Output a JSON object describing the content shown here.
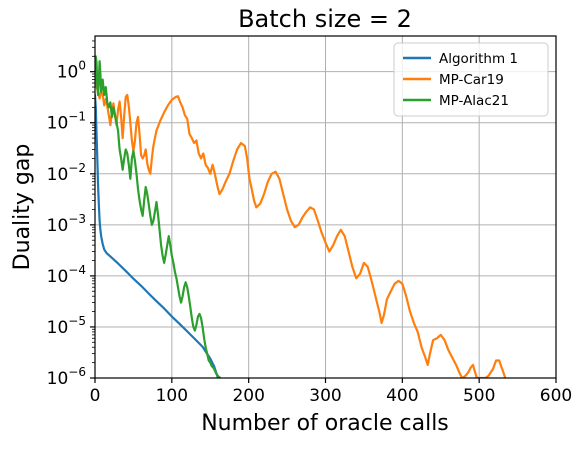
{
  "chart_data": {
    "type": "line",
    "title": "Batch size = 2",
    "xlabel": "Number of oracle calls",
    "ylabel": "Duality gap",
    "xlim": [
      0,
      600
    ],
    "ylim": [
      1e-06,
      5
    ],
    "yscale": "log",
    "grid": true,
    "legend_position": "top-right",
    "x_ticks": [
      {
        "value": 0,
        "label": "0"
      },
      {
        "value": 100,
        "label": "100"
      },
      {
        "value": 200,
        "label": "200"
      },
      {
        "value": 300,
        "label": "300"
      },
      {
        "value": 400,
        "label": "400"
      },
      {
        "value": 500,
        "label": "500"
      },
      {
        "value": 600,
        "label": "600"
      }
    ],
    "y_ticks": [
      {
        "value": 1.0,
        "base": "10",
        "exp": "0"
      },
      {
        "value": 0.1,
        "base": "10",
        "exp": "−1"
      },
      {
        "value": 0.01,
        "base": "10",
        "exp": "−2"
      },
      {
        "value": 0.001,
        "base": "10",
        "exp": "−3"
      },
      {
        "value": 0.0001,
        "base": "10",
        "exp": "−4"
      },
      {
        "value": 1e-05,
        "base": "10",
        "exp": "−5"
      },
      {
        "value": 1e-06,
        "base": "10",
        "exp": "−6"
      }
    ],
    "series": [
      {
        "name": "Algorithm 1",
        "color": "#1f77b4",
        "points": [
          [
            0,
            0.35
          ],
          [
            1,
            0.2
          ],
          [
            2,
            0.06
          ],
          [
            3,
            0.02
          ],
          [
            4,
            0.006
          ],
          [
            5,
            0.0025
          ],
          [
            6,
            0.0012
          ],
          [
            7,
            0.0008
          ],
          [
            8,
            0.0006
          ],
          [
            10,
            0.00042
          ],
          [
            12,
            0.00033
          ],
          [
            15,
            0.00028
          ],
          [
            20,
            0.00024
          ],
          [
            30,
            0.000175
          ],
          [
            40,
            0.000125
          ],
          [
            50,
            8.8e-05
          ],
          [
            60,
            6.4e-05
          ],
          [
            70,
            4.5e-05
          ],
          [
            80,
            3.2e-05
          ],
          [
            90,
            2.3e-05
          ],
          [
            100,
            1.6e-05
          ],
          [
            110,
            1.15e-05
          ],
          [
            120,
            8.2e-06
          ],
          [
            130,
            5.8e-06
          ],
          [
            140,
            4.1e-06
          ],
          [
            150,
            2.4e-06
          ],
          [
            155,
            1.7e-06
          ],
          [
            160,
            1e-06
          ]
        ]
      },
      {
        "name": "MP-Car19",
        "color": "#ff7f0e",
        "points": [
          [
            0,
            0.9
          ],
          [
            2,
            0.5
          ],
          [
            4,
            0.42
          ],
          [
            6,
            0.3
          ],
          [
            8,
            0.4
          ],
          [
            10,
            0.36
          ],
          [
            12,
            0.22
          ],
          [
            14,
            0.29
          ],
          [
            16,
            0.21
          ],
          [
            18,
            0.14
          ],
          [
            20,
            0.09
          ],
          [
            22,
            0.16
          ],
          [
            24,
            0.24
          ],
          [
            26,
            0.14
          ],
          [
            28,
            0.09
          ],
          [
            30,
            0.18
          ],
          [
            32,
            0.26
          ],
          [
            34,
            0.13
          ],
          [
            36,
            0.05
          ],
          [
            38,
            0.14
          ],
          [
            40,
            0.32
          ],
          [
            42,
            0.35
          ],
          [
            44,
            0.21
          ],
          [
            46,
            0.1
          ],
          [
            48,
            0.045
          ],
          [
            50,
            0.028
          ],
          [
            52,
            0.045
          ],
          [
            54,
            0.1
          ],
          [
            56,
            0.13
          ],
          [
            58,
            0.06
          ],
          [
            60,
            0.023
          ],
          [
            62,
            0.02
          ],
          [
            64,
            0.023
          ],
          [
            66,
            0.03
          ],
          [
            68,
            0.016
          ],
          [
            70,
            0.012
          ],
          [
            72,
            0.01
          ],
          [
            74,
            0.02
          ],
          [
            76,
            0.035
          ],
          [
            78,
            0.05
          ],
          [
            80,
            0.07
          ],
          [
            85,
            0.11
          ],
          [
            90,
            0.16
          ],
          [
            95,
            0.22
          ],
          [
            100,
            0.28
          ],
          [
            105,
            0.32
          ],
          [
            108,
            0.33
          ],
          [
            111,
            0.25
          ],
          [
            114,
            0.2
          ],
          [
            117,
            0.14
          ],
          [
            120,
            0.12
          ],
          [
            123,
            0.06
          ],
          [
            126,
            0.05
          ],
          [
            129,
            0.04
          ],
          [
            132,
            0.045
          ],
          [
            135,
            0.025
          ],
          [
            138,
            0.02
          ],
          [
            141,
            0.025
          ],
          [
            144,
            0.015
          ],
          [
            147,
            0.013
          ],
          [
            150,
            0.01
          ],
          [
            153,
            0.015
          ],
          [
            156,
            0.01
          ],
          [
            159,
            0.006
          ],
          [
            162,
            0.004
          ],
          [
            166,
            0.005
          ],
          [
            170,
            0.007
          ],
          [
            175,
            0.01
          ],
          [
            180,
            0.018
          ],
          [
            185,
            0.03
          ],
          [
            190,
            0.04
          ],
          [
            195,
            0.035
          ],
          [
            198,
            0.02
          ],
          [
            201,
            0.008
          ],
          [
            204,
            0.005
          ],
          [
            207,
            0.003
          ],
          [
            210,
            0.0022
          ],
          [
            215,
            0.0026
          ],
          [
            220,
            0.004
          ],
          [
            225,
            0.007
          ],
          [
            230,
            0.01
          ],
          [
            235,
            0.011
          ],
          [
            240,
            0.008
          ],
          [
            245,
            0.004
          ],
          [
            250,
            0.002
          ],
          [
            255,
            0.0012
          ],
          [
            260,
            0.0009
          ],
          [
            265,
            0.001
          ],
          [
            270,
            0.0014
          ],
          [
            275,
            0.0018
          ],
          [
            280,
            0.0022
          ],
          [
            285,
            0.002
          ],
          [
            290,
            0.0012
          ],
          [
            295,
            0.0007
          ],
          [
            300,
            0.00045
          ],
          [
            305,
            0.0003
          ],
          [
            310,
            0.0004
          ],
          [
            315,
            0.0006
          ],
          [
            320,
            0.0008
          ],
          [
            325,
            0.0006
          ],
          [
            330,
            0.0003
          ],
          [
            335,
            0.00015
          ],
          [
            340,
            9e-05
          ],
          [
            345,
            0.00011
          ],
          [
            350,
            0.00018
          ],
          [
            355,
            0.00015
          ],
          [
            360,
            8e-05
          ],
          [
            365,
            4e-05
          ],
          [
            370,
            2e-05
          ],
          [
            373,
            1.2e-05
          ],
          [
            376,
            1.7e-05
          ],
          [
            380,
            3.5e-05
          ],
          [
            385,
            5e-05
          ],
          [
            390,
            7e-05
          ],
          [
            395,
            8e-05
          ],
          [
            400,
            7e-05
          ],
          [
            405,
            4e-05
          ],
          [
            410,
            2e-05
          ],
          [
            415,
            1.2e-05
          ],
          [
            420,
            8e-06
          ],
          [
            425,
            4e-06
          ],
          [
            430,
            2.5e-06
          ],
          [
            433,
            1.8e-06
          ],
          [
            436,
            3e-06
          ],
          [
            440,
            5.5e-06
          ],
          [
            445,
            6e-06
          ],
          [
            450,
            7e-06
          ],
          [
            455,
            5.5e-06
          ],
          [
            460,
            3.5e-06
          ],
          [
            465,
            2.5e-06
          ],
          [
            470,
            1.8e-06
          ],
          [
            475,
            1.2e-06
          ],
          [
            478,
            1e-06
          ],
          [
            482,
            1.1e-06
          ],
          [
            486,
            1.3e-06
          ],
          [
            489,
            1.6e-06
          ],
          [
            492,
            1.8e-06
          ],
          [
            494,
            1.4e-06
          ],
          [
            497,
            1e-06
          ],
          [
            508,
            1e-06
          ],
          [
            512,
            1.1e-06
          ],
          [
            518,
            1.5e-06
          ],
          [
            522,
            2.2e-06
          ],
          [
            526,
            2.2e-06
          ],
          [
            530,
            1.5e-06
          ],
          [
            534,
            1e-06
          ]
        ]
      },
      {
        "name": "MP-Alac21",
        "color": "#2ca02c",
        "points": [
          [
            0,
            1.0
          ],
          [
            1,
            2.0
          ],
          [
            2,
            1.5
          ],
          [
            3,
            0.5
          ],
          [
            4,
            0.35
          ],
          [
            5,
            0.7
          ],
          [
            6,
            1.6
          ],
          [
            7,
            0.9
          ],
          [
            8,
            0.4
          ],
          [
            10,
            0.7
          ],
          [
            12,
            0.35
          ],
          [
            14,
            0.5
          ],
          [
            16,
            0.25
          ],
          [
            18,
            0.2
          ],
          [
            20,
            0.25
          ],
          [
            22,
            0.13
          ],
          [
            24,
            0.2
          ],
          [
            26,
            0.14
          ],
          [
            28,
            0.1
          ],
          [
            30,
            0.07
          ],
          [
            32,
            0.03
          ],
          [
            34,
            0.02
          ],
          [
            36,
            0.012
          ],
          [
            38,
            0.02
          ],
          [
            40,
            0.03
          ],
          [
            42,
            0.025
          ],
          [
            44,
            0.015
          ],
          [
            46,
            0.008
          ],
          [
            48,
            0.02
          ],
          [
            50,
            0.028
          ],
          [
            52,
            0.018
          ],
          [
            54,
            0.01
          ],
          [
            56,
            0.005
          ],
          [
            58,
            0.003
          ],
          [
            60,
            0.002
          ],
          [
            62,
            0.0015
          ],
          [
            64,
            0.003
          ],
          [
            66,
            0.0055
          ],
          [
            68,
            0.004
          ],
          [
            70,
            0.0025
          ],
          [
            72,
            0.0015
          ],
          [
            74,
            0.001
          ],
          [
            76,
            0.0012
          ],
          [
            78,
            0.0018
          ],
          [
            80,
            0.0028
          ],
          [
            82,
            0.0016
          ],
          [
            84,
            0.0008
          ],
          [
            86,
            0.0004
          ],
          [
            88,
            0.00025
          ],
          [
            90,
            0.00018
          ],
          [
            92,
            0.00026
          ],
          [
            94,
            0.0004
          ],
          [
            96,
            0.0006
          ],
          [
            98,
            0.0004
          ],
          [
            100,
            0.00025
          ],
          [
            102,
            0.00018
          ],
          [
            104,
            0.00012
          ],
          [
            106,
            9e-05
          ],
          [
            108,
            6e-05
          ],
          [
            110,
            4e-05
          ],
          [
            112,
            3e-05
          ],
          [
            114,
            4e-05
          ],
          [
            116,
            6e-05
          ],
          [
            118,
            7.5e-05
          ],
          [
            120,
            6e-05
          ],
          [
            122,
            4e-05
          ],
          [
            124,
            2.5e-05
          ],
          [
            126,
            1.5e-05
          ],
          [
            128,
            1e-05
          ],
          [
            130,
            8.5e-06
          ],
          [
            132,
            1.1e-05
          ],
          [
            134,
            1.6e-05
          ],
          [
            136,
            1.8e-05
          ],
          [
            138,
            1.5e-05
          ],
          [
            140,
            1e-05
          ],
          [
            142,
            6e-06
          ],
          [
            144,
            4e-06
          ],
          [
            146,
            3e-06
          ],
          [
            148,
            2.2e-06
          ],
          [
            150,
            2e-06
          ],
          [
            152,
            1.7e-06
          ],
          [
            154,
            1.6e-06
          ],
          [
            156,
            1.4e-06
          ],
          [
            158,
            1.2e-06
          ],
          [
            160,
            1.1e-06
          ],
          [
            163,
            1e-06
          ]
        ]
      }
    ]
  }
}
